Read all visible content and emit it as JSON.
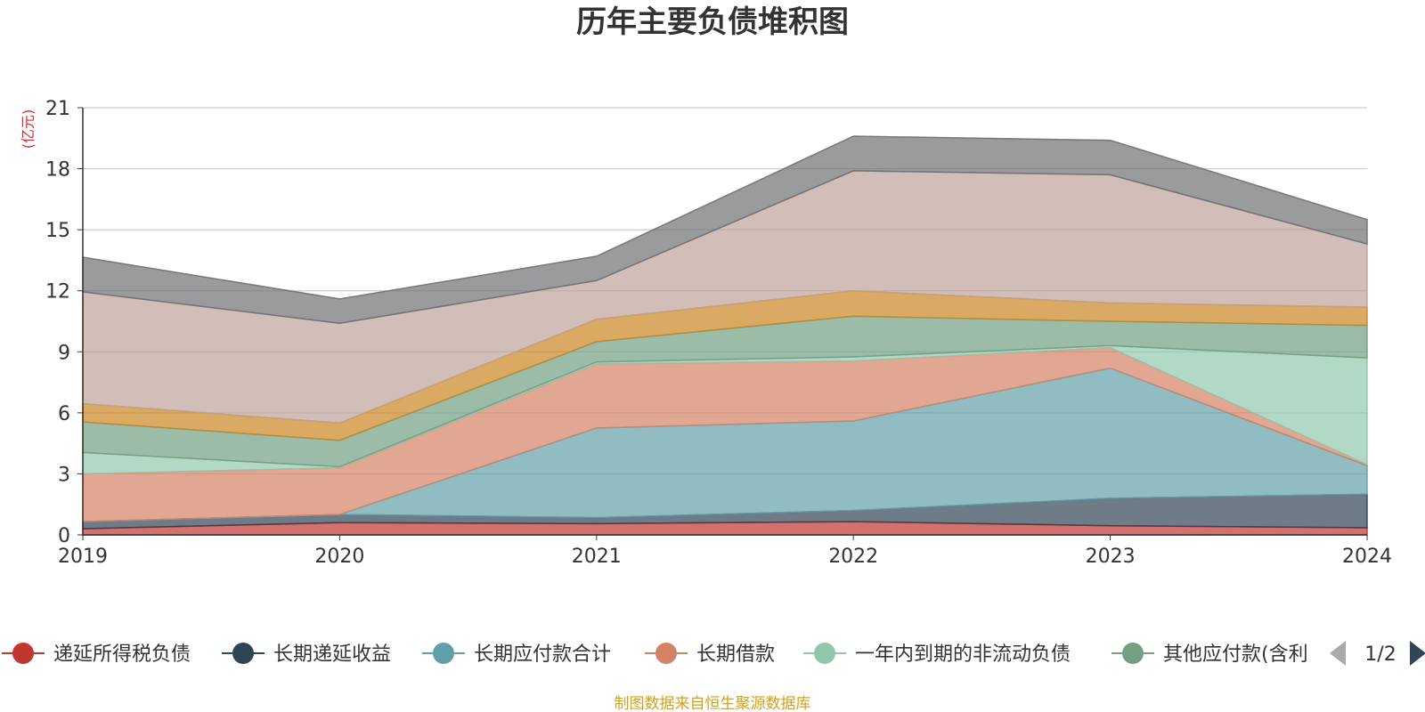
{
  "chart_data": {
    "type": "area",
    "stacked": true,
    "title": "历年主要负债堆积图",
    "ylabel": "(亿元)",
    "xlabel": "",
    "ylim": [
      0,
      21
    ],
    "yticks": [
      "0",
      "3",
      "6",
      "9",
      "12",
      "15",
      "18",
      "21"
    ],
    "categories": [
      "2019",
      "2020",
      "2021",
      "2022",
      "2023",
      "2024"
    ],
    "grid": true,
    "series": [
      {
        "name": "递延所得税负债",
        "color": "#c23531",
        "legend": true,
        "values": [
          0.3,
          0.6,
          0.55,
          0.65,
          0.45,
          0.35
        ]
      },
      {
        "name": "长期递延收益",
        "color": "#2f4554",
        "legend": true,
        "values": [
          0.35,
          0.4,
          0.3,
          0.55,
          1.35,
          1.65
        ]
      },
      {
        "name": "长期应付款合计",
        "color": "#61a0a8",
        "legend": true,
        "values": [
          0,
          0,
          4.4,
          4.4,
          6.4,
          1.4
        ]
      },
      {
        "name": "长期借款",
        "color": "#d48265",
        "legend": true,
        "values": [
          2.35,
          2.3,
          3.15,
          2.95,
          1.0,
          0.05
        ]
      },
      {
        "name": "一年内到期的非流动负债",
        "color": "#91c7ae",
        "legend": true,
        "values": [
          1.05,
          0.05,
          0.1,
          0.2,
          0.1,
          5.25
        ]
      },
      {
        "name": "其他应付款(含利",
        "color": "#749f83",
        "legend": true,
        "values": [
          1.5,
          1.3,
          1.0,
          2.0,
          1.2,
          1.6
        ]
      },
      {
        "name": "",
        "color": "#ca8622",
        "legend": false,
        "values": [
          0.9,
          0.85,
          1.1,
          1.25,
          0.9,
          0.9
        ]
      },
      {
        "name": "",
        "color": "#bda29a",
        "legend": false,
        "values": [
          5.5,
          4.9,
          1.9,
          5.9,
          6.3,
          3.1
        ]
      },
      {
        "name": "",
        "color": "#6e7074",
        "legend": false,
        "values": [
          1.7,
          1.2,
          1.2,
          1.7,
          1.7,
          1.2
        ]
      }
    ],
    "legend": {
      "page": "1/2",
      "placement": "bottom"
    },
    "source": "制图数据来自恒生聚源数据库"
  }
}
